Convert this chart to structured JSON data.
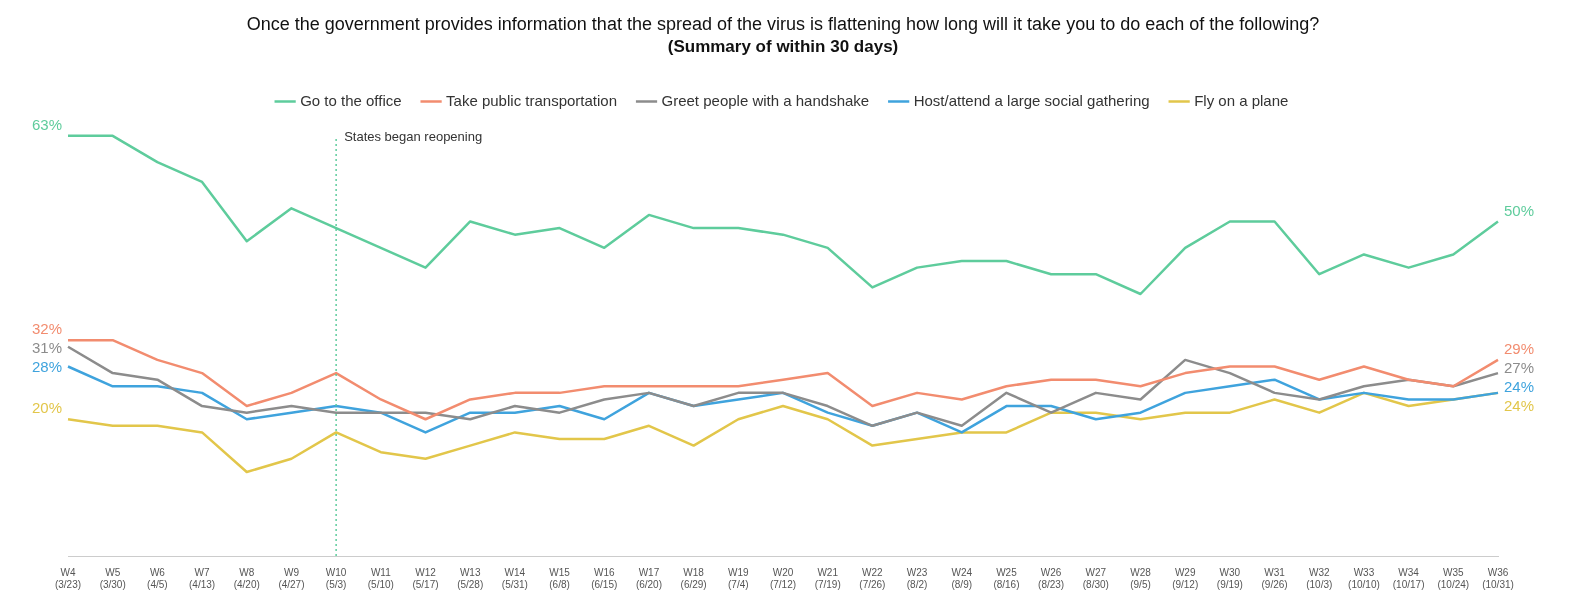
{
  "chart_data": {
    "type": "line",
    "title": "Once the government provides information that the spread of the virus is flattening how long will it take you to do each of the following?",
    "subtitle": "(Summary of within 30 days)",
    "categories": [
      "W4 (3/23)",
      "W5 (3/30)",
      "W6 (4/5)",
      "W7 (4/13)",
      "W8 (4/20)",
      "W9 (4/27)",
      "W10 (5/3)",
      "W11 (5/10)",
      "W12 (5/17)",
      "W13 (5/28)",
      "W14 (5/31)",
      "W15 (6/8)",
      "W16 (6/15)",
      "W17 (6/20)",
      "W18 (6/29)",
      "W19 (7/4)",
      "W20 (7/12)",
      "W21 (7/19)",
      "W22 (7/26)",
      "W23 (8/2)",
      "W24 (8/9)",
      "W25 (8/16)",
      "W26 (8/23)",
      "W27 (8/30)",
      "W28 (9/5)",
      "W29 (9/12)",
      "W30 (9/19)",
      "W31 (9/26)",
      "W32 (10/3)",
      "W33 (10/10)",
      "W34 (10/17)",
      "W35 (10/24)",
      "W36 (10/31)"
    ],
    "series": [
      {
        "name": "Go to the office",
        "color": "#5ecc9c",
        "values": [
          63,
          63,
          59,
          56,
          47,
          52,
          49,
          46,
          43,
          50,
          48,
          49,
          46,
          51,
          49,
          49,
          48,
          46,
          40,
          43,
          44,
          44,
          42,
          42,
          39,
          46,
          50,
          50,
          42,
          45,
          43,
          45,
          50
        ],
        "value_labels": [
          "63%",
          null,
          null,
          null,
          null,
          null,
          null,
          null,
          null,
          null,
          null,
          null,
          null,
          null,
          null,
          null,
          null,
          null,
          null,
          null,
          null,
          null,
          null,
          null,
          null,
          null,
          null,
          null,
          null,
          null,
          null,
          null,
          "50%"
        ]
      },
      {
        "name": "Take public transportation",
        "color": "#f28c6f",
        "values": [
          32,
          32,
          29,
          27,
          22,
          24,
          27,
          23,
          20,
          23,
          24,
          24,
          25,
          25,
          25,
          25,
          26,
          27,
          22,
          24,
          23,
          25,
          26,
          26,
          25,
          27,
          28,
          28,
          26,
          28,
          26,
          25,
          29
        ],
        "value_labels": [
          "32%",
          null,
          null,
          null,
          null,
          null,
          null,
          null,
          null,
          null,
          null,
          null,
          null,
          null,
          null,
          null,
          null,
          null,
          null,
          null,
          null,
          null,
          null,
          null,
          null,
          null,
          null,
          null,
          null,
          null,
          null,
          null,
          "29%"
        ]
      },
      {
        "name": "Greet people with a handshake",
        "color": "#8c8c8c",
        "values": [
          31,
          27,
          26,
          22,
          21,
          22,
          21,
          21,
          21,
          20,
          22,
          21,
          23,
          24,
          22,
          24,
          24,
          22,
          19,
          21,
          19,
          24,
          21,
          24,
          23,
          29,
          27,
          24,
          23,
          25,
          26,
          25,
          27
        ],
        "value_labels": [
          "31%",
          null,
          null,
          null,
          null,
          null,
          null,
          null,
          null,
          null,
          null,
          null,
          null,
          null,
          null,
          null,
          null,
          null,
          null,
          null,
          null,
          null,
          null,
          null,
          null,
          null,
          null,
          null,
          null,
          null,
          null,
          null,
          "27%"
        ]
      },
      {
        "name": "Host/attend a large social gathering",
        "color": "#3fa3dd",
        "values": [
          28,
          25,
          25,
          24,
          20,
          21,
          22,
          21,
          18,
          21,
          21,
          22,
          20,
          24,
          22,
          23,
          24,
          21,
          19,
          21,
          18,
          22,
          22,
          20,
          21,
          24,
          25,
          26,
          23,
          24,
          23,
          23,
          24
        ],
        "value_labels": [
          "28%",
          null,
          null,
          null,
          null,
          null,
          null,
          null,
          null,
          null,
          null,
          null,
          null,
          null,
          null,
          null,
          null,
          null,
          null,
          null,
          null,
          null,
          null,
          null,
          null,
          null,
          null,
          null,
          null,
          null,
          null,
          null,
          "24%"
        ]
      },
      {
        "name": "Fly on a plane",
        "color": "#e2c64a",
        "values": [
          20,
          19,
          19,
          18,
          12,
          14,
          18,
          15,
          14,
          16,
          18,
          17,
          17,
          19,
          16,
          20,
          22,
          20,
          16,
          17,
          18,
          18,
          21,
          21,
          20,
          21,
          21,
          23,
          21,
          24,
          22,
          23,
          24
        ],
        "value_labels": [
          "20%",
          null,
          null,
          null,
          null,
          null,
          null,
          null,
          null,
          null,
          null,
          null,
          null,
          null,
          null,
          null,
          null,
          null,
          null,
          null,
          null,
          null,
          null,
          null,
          null,
          null,
          null,
          null,
          null,
          null,
          null,
          null,
          "24%"
        ]
      }
    ],
    "ref_lines": [
      {
        "axis": "x",
        "value": "W10 (5/3)",
        "label": "States began reopening",
        "color": "#5ecc9c",
        "line_style": "dotted"
      }
    ],
    "legend": "top",
    "grid": false,
    "marker": "none",
    "line_style": "solid"
  }
}
